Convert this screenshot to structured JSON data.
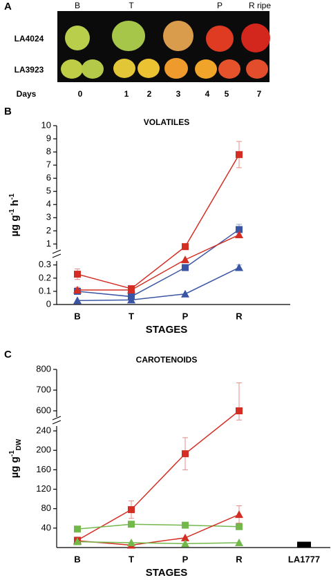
{
  "panel_a": {
    "label": "A",
    "stage_labels": [
      "B",
      "T",
      "P",
      "R ripe"
    ],
    "rows": [
      "LA4024",
      "LA3923"
    ],
    "days_label": "Days",
    "days": [
      "0",
      "1",
      "2",
      "3",
      "4",
      "5",
      "7"
    ]
  },
  "chart_data": [
    {
      "type": "line",
      "panel_label": "B",
      "title": "VOLATILES",
      "x_label": "STAGES",
      "y_label": [
        {
          "text": "µg g"
        },
        {
          "text": "-1",
          "sup": true
        },
        {
          "text": " h"
        },
        {
          "text": "-1",
          "sup": true
        }
      ],
      "categories": [
        "B",
        "T",
        "P",
        "R"
      ],
      "ylim_lower": [
        0,
        0.33
      ],
      "ylim_upper": [
        0.6,
        10
      ],
      "yticks_lower": [
        0,
        0.1,
        0.2,
        0.3
      ],
      "yticks_upper": [
        1,
        2,
        3,
        4,
        5,
        6,
        7,
        8,
        9,
        10
      ],
      "series": [
        {
          "color": "#d42e24",
          "marker": "square",
          "values": [
            0.23,
            0.12,
            0.8,
            7.8
          ],
          "errors": [
            0.04,
            0.015,
            null,
            1.0
          ]
        },
        {
          "color": "#3a55a4",
          "marker": "square",
          "values": [
            0.1,
            0.06,
            0.28,
            2.1
          ],
          "errors": [
            0.02,
            0.02,
            0.02,
            0.4
          ]
        },
        {
          "color": "#d42e24",
          "marker": "triangle",
          "values": [
            0.11,
            0.11,
            0.36,
            1.7
          ],
          "errors": [
            0.02,
            0.02,
            null,
            null
          ]
        },
        {
          "color": "#3a55a4",
          "marker": "triangle",
          "values": [
            0.03,
            0.035,
            0.08,
            0.28
          ],
          "errors": [
            null,
            null,
            null,
            0.02
          ]
        }
      ]
    },
    {
      "type": "line",
      "panel_label": "C",
      "title": "CAROTENOIDS",
      "x_label": "STAGES",
      "y_label": [
        {
          "text": "µg g"
        },
        {
          "text": "-1",
          "sup": true
        },
        {
          "text": "DW",
          "sub": true
        }
      ],
      "categories": [
        "B",
        "T",
        "P",
        "R",
        "LA1777"
      ],
      "ylim_lower": [
        0,
        250
      ],
      "ylim_upper": [
        570,
        800
      ],
      "yticks_lower": [
        40,
        80,
        120,
        160,
        200,
        240
      ],
      "yticks_upper": [
        600,
        700,
        800
      ],
      "series": [
        {
          "color": "#d42e24",
          "marker": "square",
          "values": [
            15,
            78,
            193,
            600,
            null
          ],
          "errors": [
            null,
            18,
            33,
            135,
            null
          ]
        },
        {
          "color": "#72b84a",
          "marker": "square",
          "values": [
            38,
            48,
            46,
            43,
            null
          ],
          "errors": [
            null,
            null,
            null,
            null,
            null
          ]
        },
        {
          "color": "#d42e24",
          "marker": "triangle",
          "values": [
            14,
            5,
            20,
            68,
            null
          ],
          "errors": [
            null,
            null,
            null,
            18,
            null
          ]
        },
        {
          "color": "#72b84a",
          "marker": "triangle",
          "values": [
            12,
            10,
            8,
            10,
            null
          ],
          "errors": [
            null,
            null,
            null,
            null,
            null
          ]
        },
        {
          "color": "#000000",
          "marker": "bar",
          "values": [
            null,
            null,
            null,
            null,
            12
          ],
          "errors": [
            null,
            null,
            null,
            null,
            null
          ]
        }
      ]
    }
  ]
}
